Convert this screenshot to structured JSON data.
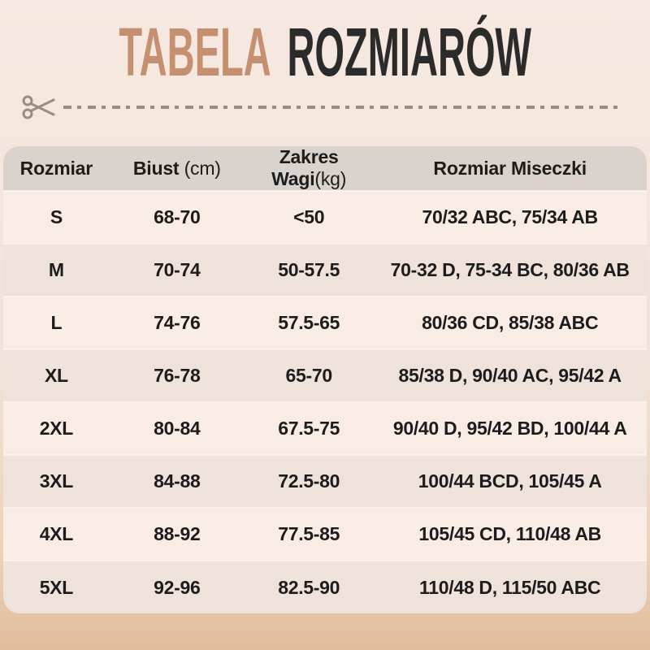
{
  "title": {
    "accent": "TABELA",
    "rest": "ROZMIARÓW"
  },
  "icons": {
    "scissors": "✂"
  },
  "colors": {
    "bg_top": "#f6e9e1",
    "bg_bottom": "#e0bc9b",
    "accent": "#c4906f",
    "title_dark": "#2b2b2b",
    "dash": "#9c8b7f",
    "header_bg": "#dad2cc",
    "row_light": "#f8ece4",
    "row_alt": "#eee2db",
    "text": "#1c1c1c"
  },
  "chart_data": {
    "type": "table",
    "title": "TABELA ROZMIARÓW",
    "columns": [
      {
        "label": "Rozmiar",
        "unit": ""
      },
      {
        "label": "Biust",
        "unit": " (cm)"
      },
      {
        "label": "Zakres Wagi",
        "unit": "(kg)"
      },
      {
        "label": "Rozmiar Miseczki",
        "unit": ""
      }
    ],
    "rows": [
      {
        "size": "S",
        "bust_cm": "68-70",
        "weight_kg": "<50",
        "cup_sizes": "70/32 ABC, 75/34 AB"
      },
      {
        "size": "M",
        "bust_cm": "70-74",
        "weight_kg": "50-57.5",
        "cup_sizes": "70-32 D, 75-34 BC, 80/36 AB"
      },
      {
        "size": "L",
        "bust_cm": "74-76",
        "weight_kg": "57.5-65",
        "cup_sizes": "80/36 CD, 85/38 ABC"
      },
      {
        "size": "XL",
        "bust_cm": "76-78",
        "weight_kg": "65-70",
        "cup_sizes": "85/38 D, 90/40 AC, 95/42 A"
      },
      {
        "size": "2XL",
        "bust_cm": "80-84",
        "weight_kg": "67.5-75",
        "cup_sizes": "90/40 D, 95/42 BD, 100/44 A"
      },
      {
        "size": "3XL",
        "bust_cm": "84-88",
        "weight_kg": "72.5-80",
        "cup_sizes": "100/44 BCD, 105/45 A"
      },
      {
        "size": "4XL",
        "bust_cm": "88-92",
        "weight_kg": "77.5-85",
        "cup_sizes": "105/45 CD, 110/48 AB"
      },
      {
        "size": "5XL",
        "bust_cm": "92-96",
        "weight_kg": "82.5-90",
        "cup_sizes": "110/48 D, 115/50 ABC"
      }
    ]
  }
}
